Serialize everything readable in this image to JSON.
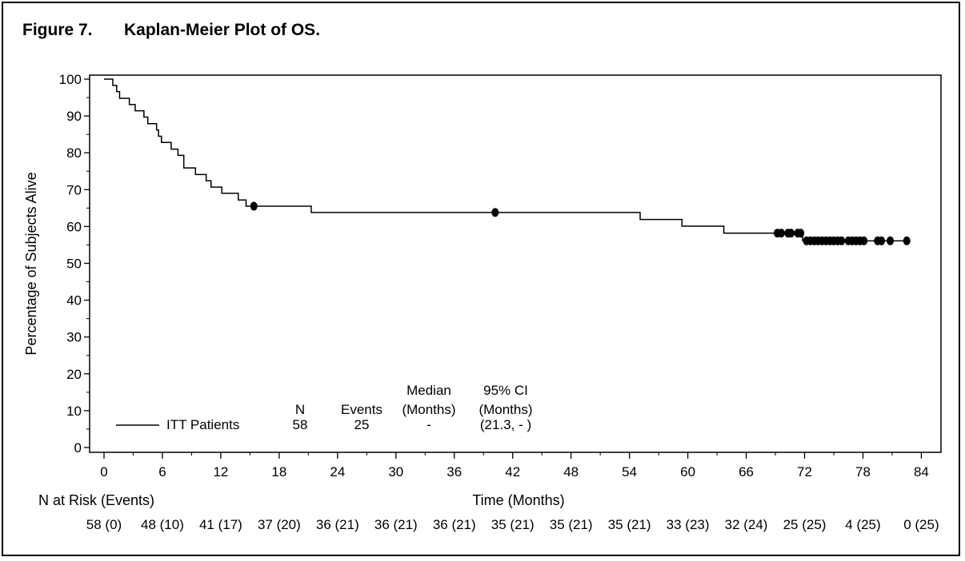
{
  "figure": {
    "number": "Figure 7.",
    "title": "Kaplan-Meier Plot of OS."
  },
  "chart_data": {
    "type": "line",
    "title": "Kaplan-Meier Plot of OS.",
    "xlabel": "Time (Months)",
    "ylabel": "Percentage of Subjects Alive",
    "xlim": [
      0,
      85
    ],
    "ylim": [
      0,
      100
    ],
    "x_ticks": [
      0,
      6,
      12,
      18,
      24,
      30,
      36,
      42,
      48,
      54,
      60,
      66,
      72,
      78,
      84
    ],
    "y_ticks": [
      0,
      10,
      20,
      30,
      40,
      50,
      60,
      70,
      80,
      90,
      100
    ],
    "grid": false,
    "series": [
      {
        "name": "ITT Patients",
        "color": "#000000",
        "steps": [
          [
            0,
            100
          ],
          [
            0.9,
            98.3
          ],
          [
            1.3,
            96.6
          ],
          [
            1.6,
            94.8
          ],
          [
            2.6,
            93.1
          ],
          [
            3.2,
            91.4
          ],
          [
            4.1,
            89.7
          ],
          [
            4.5,
            87.9
          ],
          [
            5.4,
            86.2
          ],
          [
            5.6,
            84.5
          ],
          [
            5.9,
            82.8
          ],
          [
            6.9,
            81.0
          ],
          [
            7.6,
            79.3
          ],
          [
            8.2,
            75.9
          ],
          [
            9.4,
            74.1
          ],
          [
            10.5,
            72.4
          ],
          [
            11.0,
            70.7
          ],
          [
            12.1,
            69.0
          ],
          [
            13.8,
            67.2
          ],
          [
            14.6,
            65.5
          ],
          [
            21.3,
            63.8
          ],
          [
            55.1,
            61.9
          ],
          [
            59.4,
            60.1
          ],
          [
            63.7,
            58.2
          ],
          [
            71.8,
            56.1
          ],
          [
            82.5,
            56.1
          ]
        ],
        "censored": [
          [
            15.4,
            65.5
          ],
          [
            40.2,
            63.8
          ],
          [
            69.2,
            58.2
          ],
          [
            69.6,
            58.2
          ],
          [
            70.3,
            58.2
          ],
          [
            70.6,
            58.2
          ],
          [
            71.3,
            58.2
          ],
          [
            71.6,
            58.2
          ],
          [
            72.2,
            56.1
          ],
          [
            72.6,
            56.1
          ],
          [
            73.0,
            56.1
          ],
          [
            73.4,
            56.1
          ],
          [
            73.8,
            56.1
          ],
          [
            74.2,
            56.1
          ],
          [
            74.6,
            56.1
          ],
          [
            75.0,
            56.1
          ],
          [
            75.4,
            56.1
          ],
          [
            75.8,
            56.1
          ],
          [
            76.5,
            56.1
          ],
          [
            76.9,
            56.1
          ],
          [
            77.3,
            56.1
          ],
          [
            77.7,
            56.1
          ],
          [
            78.1,
            56.1
          ],
          [
            79.5,
            56.1
          ],
          [
            79.9,
            56.1
          ],
          [
            80.8,
            56.1
          ],
          [
            82.5,
            56.1
          ]
        ]
      }
    ],
    "legend_table": {
      "headers": [
        [
          "",
          "N"
        ],
        [
          "",
          "Events"
        ],
        [
          "Median",
          "(Months)"
        ],
        [
          "95% CI",
          "(Months)"
        ]
      ],
      "row": {
        "label": "ITT Patients",
        "n": "58",
        "events": "25",
        "median": "-",
        "ci": "(21.3, - )"
      }
    },
    "risk_table": {
      "label": "N at Risk (Events)",
      "values": [
        "58 (0)",
        "48 (10)",
        "41 (17)",
        "37 (20)",
        "36 (21)",
        "36 (21)",
        "36 (21)",
        "35 (21)",
        "35 (21)",
        "35 (21)",
        "33 (23)",
        "32 (24)",
        "25 (25)",
        "4 (25)",
        "0 (25)"
      ]
    }
  }
}
